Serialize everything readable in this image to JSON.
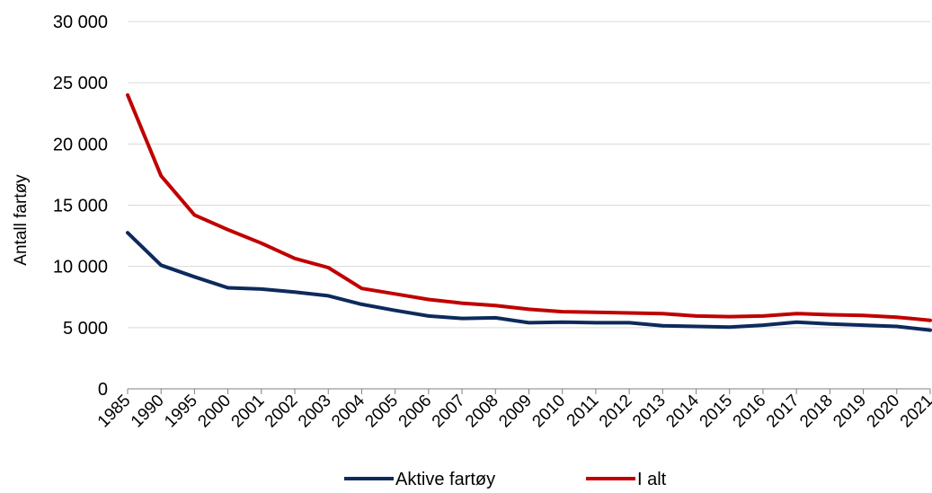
{
  "chart_data": {
    "type": "line",
    "title": "",
    "xlabel": "",
    "ylabel": "Antall fartøy",
    "ylim": [
      0,
      30000
    ],
    "yticks": [
      0,
      5000,
      10000,
      15000,
      20000,
      25000,
      30000
    ],
    "ytick_labels": [
      "0",
      "5 000",
      "10 000",
      "15 000",
      "20 000",
      "25 000",
      "30 000"
    ],
    "categories": [
      "1985",
      "1990",
      "1995",
      "2000",
      "2001",
      "2002",
      "2003",
      "2004",
      "2005",
      "2006",
      "2007",
      "2008",
      "2009",
      "2010",
      "2011",
      "2012",
      "2013",
      "2014",
      "2015",
      "2016",
      "2017",
      "2018",
      "2019",
      "2020",
      "2021"
    ],
    "grid": "horizontal",
    "legend_position": "bottom",
    "series": [
      {
        "name": "Aktive fartøy",
        "color": "#0d2a5c",
        "values": [
          12750,
          10100,
          9150,
          8250,
          8150,
          7900,
          7600,
          6900,
          6400,
          5950,
          5750,
          5800,
          5400,
          5450,
          5400,
          5400,
          5150,
          5100,
          5050,
          5200,
          5450,
          5300,
          5200,
          5100,
          4800
        ]
      },
      {
        "name": "I alt",
        "color": "#c00000",
        "values": [
          24000,
          17400,
          14200,
          13000,
          11900,
          10650,
          9900,
          8200,
          7750,
          7300,
          7000,
          6800,
          6500,
          6300,
          6250,
          6200,
          6150,
          5950,
          5900,
          5950,
          6150,
          6050,
          6000,
          5850,
          5600
        ]
      }
    ]
  }
}
